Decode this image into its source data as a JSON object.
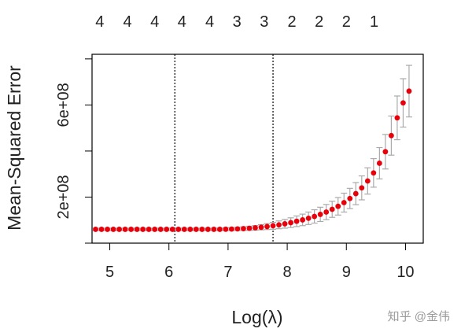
{
  "chart_data": {
    "type": "scatter",
    "xlabel": "Log(λ)",
    "ylabel": "Mean-Squared Error",
    "xlim": [
      4.7,
      10.3
    ],
    "ylim": [
      0,
      820000000
    ],
    "x_ticks": [
      5,
      6,
      7,
      8,
      9,
      10
    ],
    "x_tick_labels": [
      "5",
      "6",
      "7",
      "8",
      "9",
      "10"
    ],
    "y_ticks": [
      200000000,
      600000000
    ],
    "y_tick_labels": [
      "2e+08",
      "6e+08"
    ],
    "y_minor_ticks": [
      0,
      200000000,
      400000000,
      600000000,
      800000000
    ],
    "top_axis": {
      "x": [
        4.83,
        5.3,
        5.76,
        6.22,
        6.69,
        7.15,
        7.61,
        8.08,
        8.54,
        9.0,
        9.47
      ],
      "labels": [
        "4",
        "4",
        "4",
        "4",
        "4",
        "3",
        "3",
        "2",
        "2",
        "2",
        "1"
      ]
    },
    "vlines": [
      6.1,
      7.76
    ],
    "series": [
      {
        "x": [
          4.76,
          4.86,
          4.96,
          5.06,
          5.16,
          5.26,
          5.36,
          5.46,
          5.56,
          5.66,
          5.76,
          5.86,
          5.96,
          6.06,
          6.16,
          6.26,
          6.36,
          6.46,
          6.56,
          6.66,
          6.76,
          6.86,
          6.96,
          7.06,
          7.16,
          7.26,
          7.36,
          7.46,
          7.56,
          7.66,
          7.76,
          7.86,
          7.96,
          8.06,
          8.16,
          8.26,
          8.36,
          8.46,
          8.56,
          8.66,
          8.76,
          8.86,
          8.96,
          9.06,
          9.16,
          9.26,
          9.36,
          9.46,
          9.56,
          9.66,
          9.76,
          9.86,
          9.96,
          10.06
        ],
        "y": [
          60000000,
          60000000,
          60000000,
          60000000,
          60000000,
          60000000,
          60000000,
          60000000,
          60000000,
          60000000,
          60000000,
          60000000,
          60000000,
          60000000,
          60000000,
          60000000,
          60000000,
          60000000,
          60000000,
          60000000,
          60000000,
          60000000,
          60500000,
          61000000,
          62000000,
          63000000,
          64500000,
          66500000,
          69000000,
          72000000,
          75500000,
          79500000,
          84000000,
          89000000,
          95000000,
          101000000,
          108000000,
          116000000,
          125000000,
          135000000,
          147000000,
          160000000,
          176000000,
          194000000,
          215000000,
          240000000,
          270000000,
          305000000,
          347000000,
          397000000,
          467000000,
          544000000,
          609000000,
          660000000
        ],
        "err": [
          5000000,
          5000000,
          5000000,
          5000000,
          5000000,
          5000000,
          5000000,
          5000000,
          5000000,
          5000000,
          5000000,
          5000000,
          5000000,
          5000000,
          5000000,
          5000000,
          5000000,
          5000000,
          5000000,
          5000000,
          5000000,
          5500000,
          6000000,
          6500000,
          7000000,
          8000000,
          9000000,
          10000000,
          11500000,
          13000000,
          15000000,
          17000000,
          19000000,
          21000000,
          23000000,
          25000000,
          27000000,
          29000000,
          31000000,
          33000000,
          35000000,
          38000000,
          41000000,
          44000000,
          48000000,
          52000000,
          57000000,
          62000000,
          68000000,
          75000000,
          85000000,
          95000000,
          105000000,
          112000000
        ]
      }
    ],
    "colors": {
      "points": "#e8000b",
      "errorbars": "#aaaaaa",
      "frame": "#000000",
      "vlines": "#000000"
    }
  },
  "watermark": "知乎 @金伟"
}
